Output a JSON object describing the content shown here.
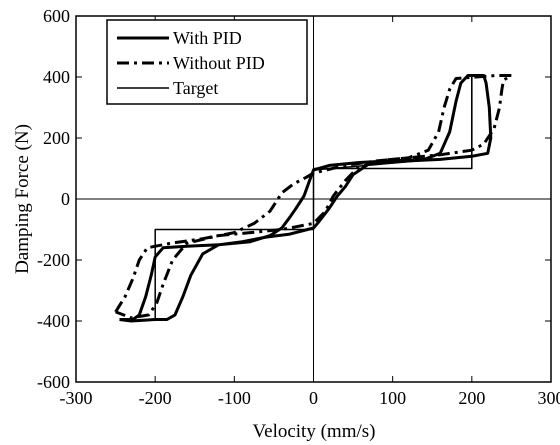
{
  "chart_data": {
    "type": "line",
    "title": "",
    "xlabel": "Velocity (mm/s)",
    "ylabel": "Damping Force (N)",
    "xlim": [
      -300,
      300
    ],
    "ylim": [
      -600,
      600
    ],
    "xticks": [
      -300,
      -200,
      -100,
      0,
      100,
      200,
      300
    ],
    "yticks": [
      -600,
      -400,
      -200,
      0,
      200,
      400,
      600
    ],
    "grid": false,
    "legend_position": "top-left",
    "series": [
      {
        "name": "With PID",
        "style": "solid-thick",
        "color": "#000000",
        "points": [
          [
            -245,
            -395
          ],
          [
            -228,
            -395
          ],
          [
            -220,
            -380
          ],
          [
            -212,
            -320
          ],
          [
            -205,
            -250
          ],
          [
            -200,
            -190
          ],
          [
            -190,
            -160
          ],
          [
            -160,
            -155
          ],
          [
            -120,
            -150
          ],
          [
            -80,
            -140
          ],
          [
            -55,
            -120
          ],
          [
            -40,
            -95
          ],
          [
            -30,
            -60
          ],
          [
            -22,
            -30
          ],
          [
            -12,
            10
          ],
          [
            -5,
            60
          ],
          [
            0,
            95
          ],
          [
            20,
            110
          ],
          [
            60,
            120
          ],
          [
            100,
            125
          ],
          [
            140,
            130
          ],
          [
            160,
            150
          ],
          [
            172,
            220
          ],
          [
            180,
            320
          ],
          [
            186,
            380
          ],
          [
            195,
            405
          ],
          [
            215,
            405
          ],
          [
            218,
            380
          ],
          [
            222,
            300
          ],
          [
            224,
            200
          ],
          [
            220,
            150
          ],
          [
            200,
            140
          ],
          [
            160,
            130
          ],
          [
            120,
            125
          ],
          [
            70,
            115
          ],
          [
            50,
            80
          ],
          [
            40,
            40
          ],
          [
            30,
            10
          ],
          [
            20,
            -30
          ],
          [
            5,
            -80
          ],
          [
            0,
            -95
          ],
          [
            -30,
            -115
          ],
          [
            -60,
            -125
          ],
          [
            -90,
            -140
          ],
          [
            -120,
            -150
          ],
          [
            -140,
            -180
          ],
          [
            -155,
            -250
          ],
          [
            -165,
            -320
          ],
          [
            -175,
            -380
          ],
          [
            -185,
            -395
          ],
          [
            -200,
            -395
          ],
          [
            -230,
            -400
          ],
          [
            -245,
            -395
          ]
        ]
      },
      {
        "name": "Without PID",
        "style": "dash-dot-thick",
        "color": "#000000",
        "points": [
          [
            -250,
            -370
          ],
          [
            -238,
            -320
          ],
          [
            -228,
            -260
          ],
          [
            -220,
            -200
          ],
          [
            -210,
            -160
          ],
          [
            -180,
            -145
          ],
          [
            -140,
            -130
          ],
          [
            -100,
            -110
          ],
          [
            -75,
            -80
          ],
          [
            -55,
            -40
          ],
          [
            -40,
            20
          ],
          [
            -25,
            50
          ],
          [
            -10,
            70
          ],
          [
            0,
            85
          ],
          [
            40,
            110
          ],
          [
            80,
            125
          ],
          [
            120,
            135
          ],
          [
            145,
            160
          ],
          [
            158,
            220
          ],
          [
            165,
            300
          ],
          [
            172,
            360
          ],
          [
            180,
            395
          ],
          [
            205,
            400
          ],
          [
            230,
            405
          ],
          [
            250,
            405
          ],
          [
            240,
            390
          ],
          [
            238,
            360
          ],
          [
            235,
            300
          ],
          [
            228,
            230
          ],
          [
            215,
            180
          ],
          [
            200,
            160
          ],
          [
            160,
            145
          ],
          [
            120,
            135
          ],
          [
            80,
            125
          ],
          [
            55,
            100
          ],
          [
            40,
            60
          ],
          [
            25,
            10
          ],
          [
            15,
            -40
          ],
          [
            0,
            -80
          ],
          [
            -40,
            -100
          ],
          [
            -80,
            -110
          ],
          [
            -120,
            -120
          ],
          [
            -160,
            -145
          ],
          [
            -178,
            -200
          ],
          [
            -190,
            -280
          ],
          [
            -198,
            -340
          ],
          [
            -208,
            -380
          ],
          [
            -230,
            -390
          ],
          [
            -250,
            -370
          ]
        ]
      },
      {
        "name": "Target",
        "style": "solid-thin",
        "color": "#000000",
        "points": [
          [
            -200,
            -400
          ],
          [
            -200,
            -100
          ],
          [
            0,
            -100
          ],
          [
            0,
            100
          ],
          [
            200,
            100
          ],
          [
            200,
            400
          ]
        ]
      },
      {
        "name": "Target",
        "style": "solid-thin",
        "color": "#000000",
        "points": [
          [
            200,
            400
          ],
          [
            200,
            140
          ],
          [
            0,
            95
          ]
        ]
      }
    ]
  }
}
